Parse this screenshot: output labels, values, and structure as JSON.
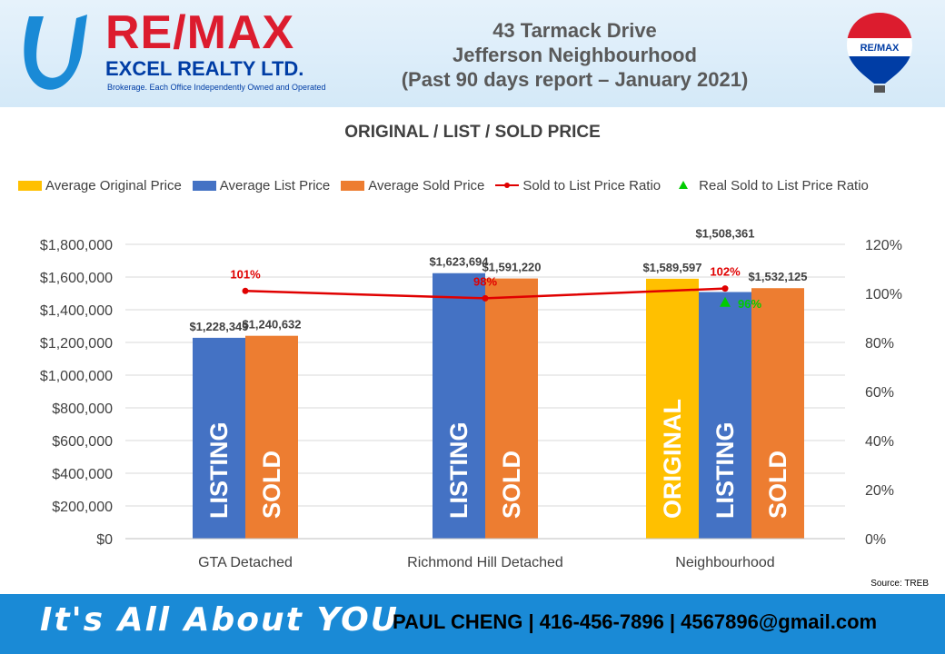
{
  "header": {
    "brand": "RE/MAX",
    "company": "EXCEL REALTY LTD.",
    "brokerage_note": "Brokerage. Each Office Independently Owned and Operated",
    "title_line1": "43 Tarmack Drive",
    "title_line2": "Jefferson Neighbourhood",
    "title_line3": "(Past 90 days report – January 2021)",
    "balloon_label": "RE/MAX"
  },
  "chart_data": {
    "type": "bar",
    "title": "ORIGINAL / LIST / SOLD PRICE",
    "categories": [
      "GTA  Detached",
      "Richmond Hill Detached",
      "Neighbourhood"
    ],
    "series": [
      {
        "name": "Average Original Price",
        "color": "#ffc000",
        "values": [
          null,
          null,
          1589597
        ],
        "labels": [
          "",
          "",
          "$1,589,597"
        ],
        "bar_text": [
          "",
          "",
          "ORIGINAL"
        ]
      },
      {
        "name": "Average List Price",
        "color": "#4472c4",
        "values": [
          1228349,
          1623694,
          1508361
        ],
        "labels": [
          "$1,228,349",
          "$1,623,694",
          "$1,508,361"
        ],
        "bar_text": [
          "LISTING",
          "LISTING",
          "LISTING"
        ]
      },
      {
        "name": "Average Sold Price",
        "color": "#ed7d31",
        "values": [
          1240632,
          1591220,
          1532125
        ],
        "labels": [
          "$1,240,632",
          "$1,591,220",
          "$1,532,125"
        ],
        "bar_text": [
          "SOLD",
          "SOLD",
          "SOLD"
        ]
      }
    ],
    "line_series": {
      "name": "Sold to List Price Ratio",
      "color": "#e00000",
      "values": [
        101,
        98,
        102
      ],
      "labels": [
        "101%",
        "98%",
        "102%"
      ]
    },
    "marker_series": {
      "name": "Real Sold to List Price Ratio",
      "color": "#00cc00",
      "values": [
        null,
        null,
        96
      ],
      "labels": [
        "",
        "",
        "96%"
      ]
    },
    "y_left": {
      "min": 0,
      "max": 1800000,
      "step": 200000,
      "ticks": [
        "$0",
        "$200,000",
        "$400,000",
        "$600,000",
        "$800,000",
        "$1,000,000",
        "$1,200,000",
        "$1,400,000",
        "$1,600,000",
        "$1,800,000"
      ]
    },
    "y_right": {
      "min": 0,
      "max": 120,
      "step": 20,
      "ticks": [
        "0%",
        "20%",
        "40%",
        "60%",
        "80%",
        "100%",
        "120%"
      ]
    },
    "grid": true,
    "legend": "top"
  },
  "source": "Source: TREB",
  "footer": {
    "tagline": "It's All About YOU",
    "contact": "PAUL CHENG | 416-456-7896 | 4567896@gmail.com"
  }
}
